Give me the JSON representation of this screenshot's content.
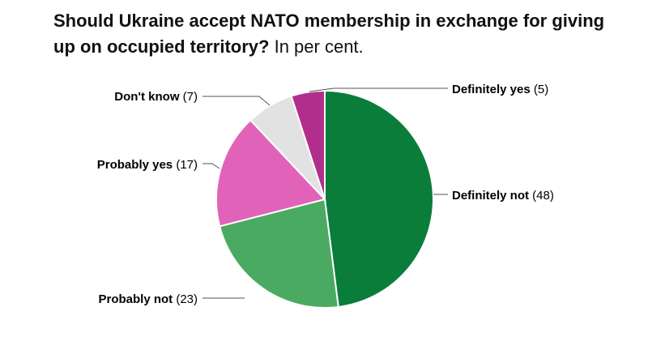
{
  "chart_data": {
    "type": "pie",
    "title": "Should Ukraine accept NATO membership in exchange for giving up on occupied territory?",
    "subtitle": "In per cent.",
    "slices": [
      {
        "label": "Definitely not",
        "value": 48,
        "color": "#0a7d3a"
      },
      {
        "label": "Probably not",
        "value": 23,
        "color": "#4aaa62"
      },
      {
        "label": "Probably yes",
        "value": 17,
        "color": "#e163b9"
      },
      {
        "label": "Don't know",
        "value": 7,
        "color": "#e2e2e2"
      },
      {
        "label": "Definitely yes",
        "value": 5,
        "color": "#b22e8c"
      }
    ]
  }
}
